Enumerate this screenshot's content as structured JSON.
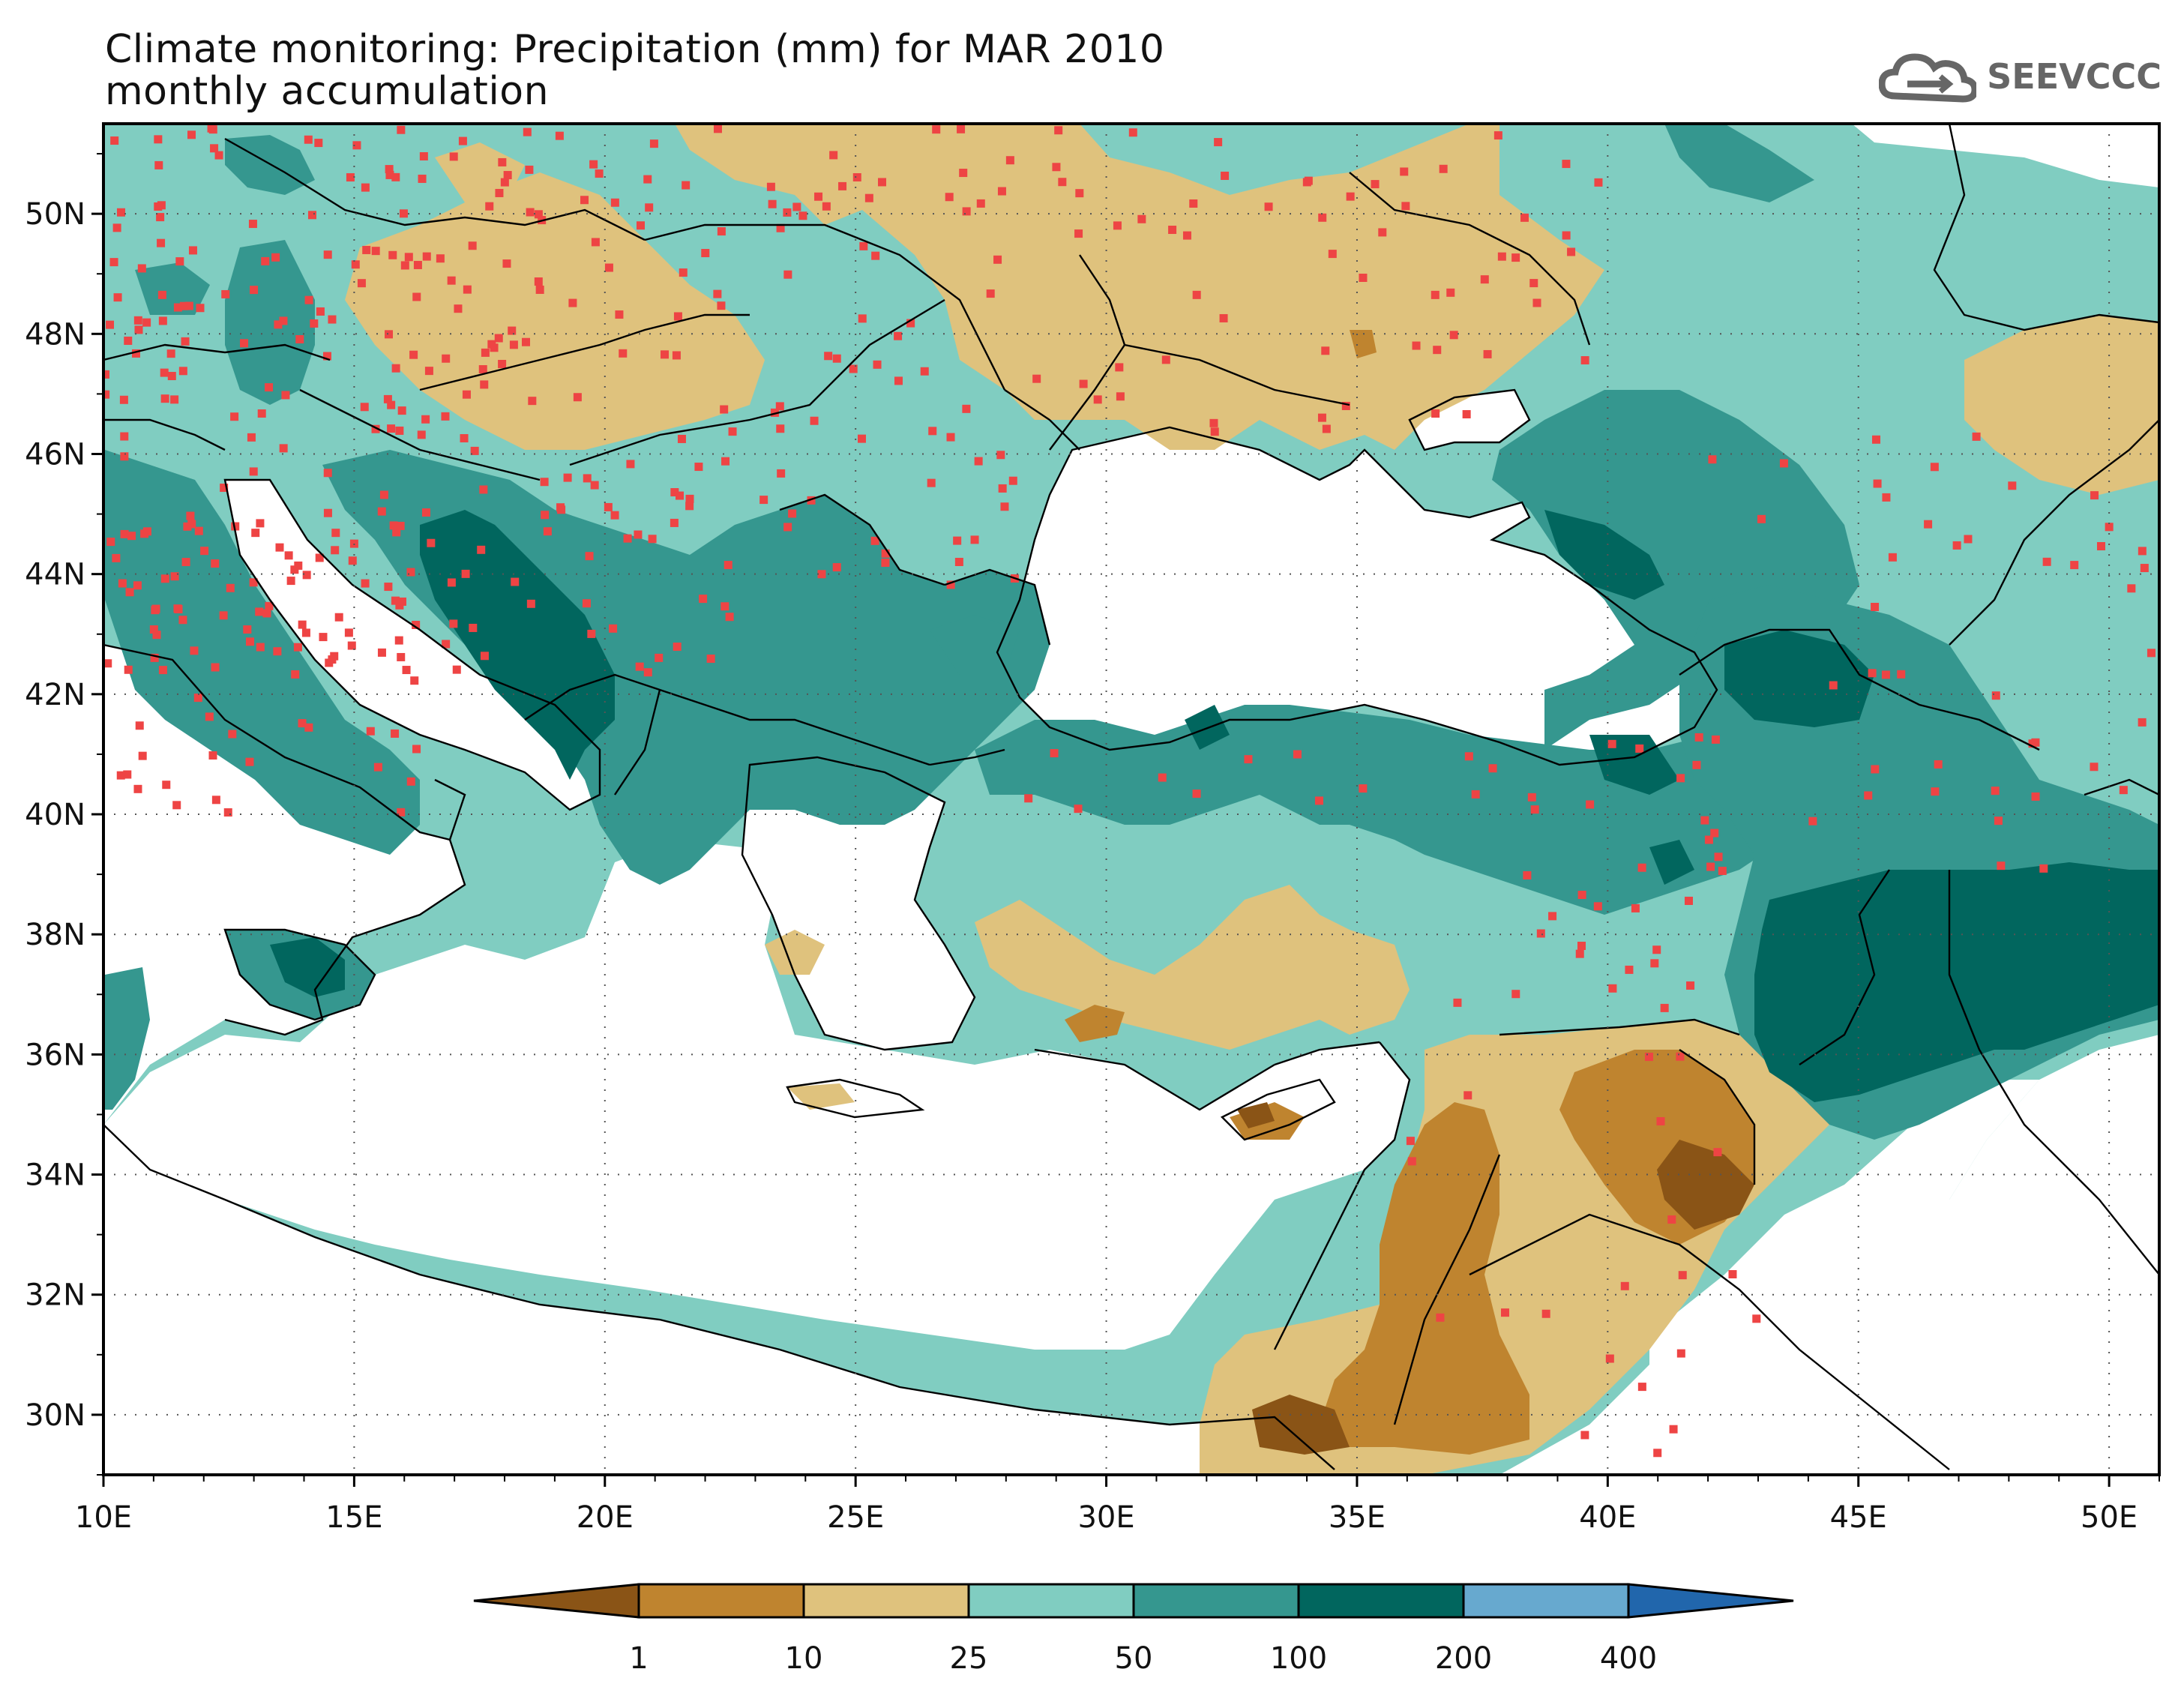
{
  "title": {
    "line1": "Climate monitoring: Precipitation (mm) for MAR 2010",
    "line2": "monthly accumulation"
  },
  "logo": {
    "text": "SEEVCCC",
    "icon": "cloud-icon"
  },
  "map": {
    "lon_range": [
      10,
      51
    ],
    "lat_range": [
      29,
      51.5
    ],
    "lon_ticks": [
      "10E",
      "15E",
      "20E",
      "25E",
      "30E",
      "35E",
      "40E",
      "45E",
      "50E"
    ],
    "lat_ticks": [
      "30N",
      "32N",
      "34N",
      "36N",
      "38N",
      "40N",
      "42N",
      "44N",
      "46N",
      "48N",
      "50N"
    ],
    "grid": "dotted",
    "station_marker_color": "#ee4444"
  },
  "legend": {
    "type": "colorbar",
    "classes": [
      {
        "label": "<1",
        "color": "#8a5416"
      },
      {
        "label": "1-10",
        "color": "#bf842f"
      },
      {
        "label": "10-25",
        "color": "#dfc27d"
      },
      {
        "label": "25-50",
        "color": "#80cdc1"
      },
      {
        "label": "50-100",
        "color": "#35978f"
      },
      {
        "label": "100-200",
        "color": "#01665e"
      },
      {
        "label": "200-400",
        "color": "#67a9cf"
      },
      {
        "label": ">400",
        "color": "#2166ac"
      }
    ],
    "tick_labels": [
      "1",
      "10",
      "25",
      "50",
      "100",
      "200",
      "400"
    ]
  }
}
